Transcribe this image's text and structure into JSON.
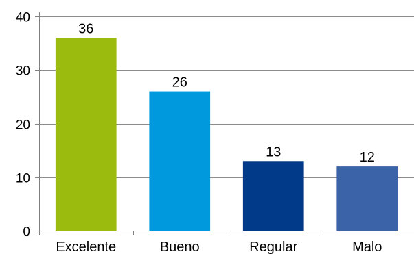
{
  "chart_data": {
    "type": "bar",
    "title": "",
    "xlabel": "",
    "ylabel": "",
    "categories": [
      "Excelente",
      "Bueno",
      "Regular",
      "Malo"
    ],
    "values": [
      36,
      26,
      13,
      12
    ],
    "colors": [
      "#9bbb0e",
      "#0099dd",
      "#003a88",
      "#3a63a8"
    ],
    "ylim": [
      0,
      40
    ],
    "yticks": [
      0,
      10,
      20,
      30,
      40
    ],
    "grid": true,
    "legend": "none",
    "data_labels": true
  }
}
